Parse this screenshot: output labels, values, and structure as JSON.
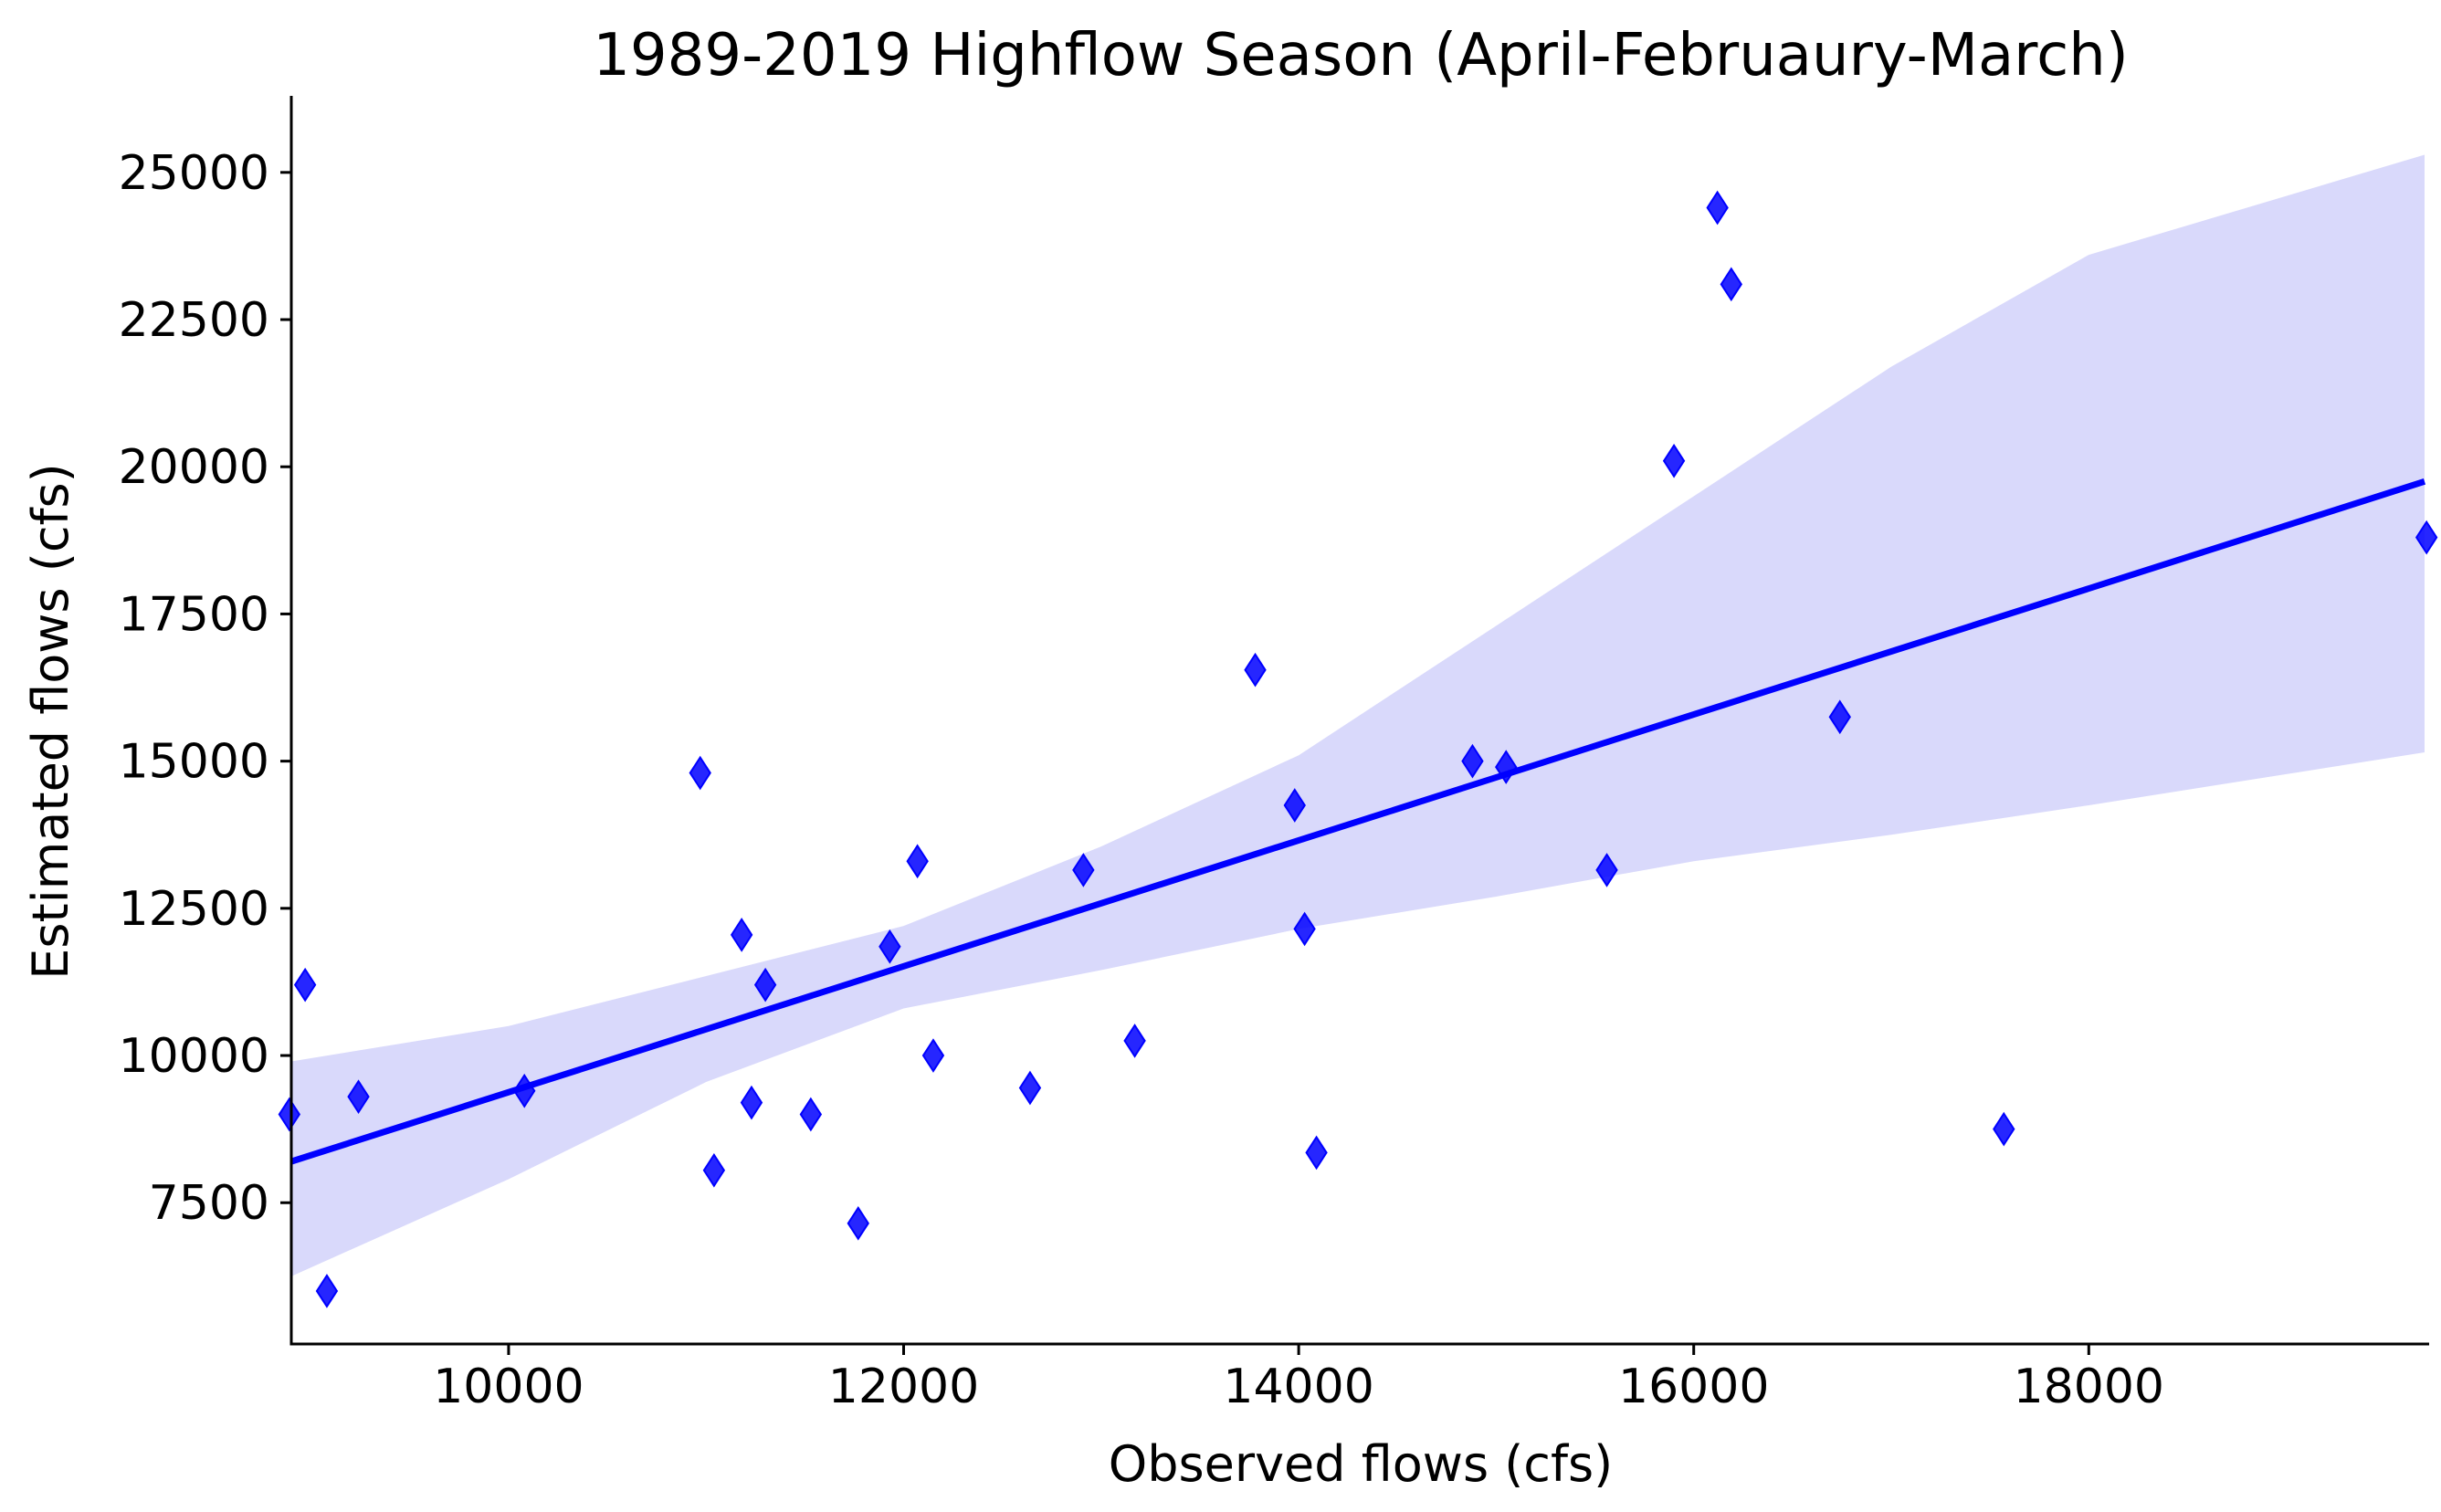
{
  "chart_data": {
    "type": "scatter",
    "title": "1989-2019 Highflow Season (April-Februaury-March)",
    "xlabel": "Observed flows (cfs)",
    "ylabel": "Estimated flows (cfs)",
    "xlim": [
      8900,
      19700
    ],
    "ylim": [
      5100,
      26300
    ],
    "xticks": [
      10000,
      12000,
      14000,
      16000,
      18000
    ],
    "yticks": [
      7500,
      10000,
      12500,
      15000,
      17500,
      20000,
      22500,
      25000
    ],
    "xtick_labels": [
      "10000",
      "12000",
      "14000",
      "16000",
      "18000"
    ],
    "ytick_labels": [
      "7500",
      "10000",
      "12500",
      "15000",
      "17500",
      "20000",
      "22500",
      "25000"
    ],
    "grid": false,
    "colors": {
      "points": "#0000ff",
      "line": "#0000ff",
      "band": "#d9d9fb"
    },
    "marker": "diamond",
    "points": [
      {
        "x": 8890,
        "y": 9000
      },
      {
        "x": 8970,
        "y": 11200
      },
      {
        "x": 9080,
        "y": 6000
      },
      {
        "x": 9240,
        "y": 9300
      },
      {
        "x": 10080,
        "y": 9400
      },
      {
        "x": 10970,
        "y": 14800
      },
      {
        "x": 11040,
        "y": 8050
      },
      {
        "x": 11180,
        "y": 12050
      },
      {
        "x": 11230,
        "y": 9200
      },
      {
        "x": 11300,
        "y": 11200
      },
      {
        "x": 11530,
        "y": 9000
      },
      {
        "x": 11770,
        "y": 7150
      },
      {
        "x": 11930,
        "y": 11850
      },
      {
        "x": 12070,
        "y": 13300
      },
      {
        "x": 12150,
        "y": 10000
      },
      {
        "x": 12640,
        "y": 9450
      },
      {
        "x": 12910,
        "y": 13150
      },
      {
        "x": 13170,
        "y": 10250
      },
      {
        "x": 13780,
        "y": 16550
      },
      {
        "x": 13980,
        "y": 14250
      },
      {
        "x": 14030,
        "y": 12150
      },
      {
        "x": 14090,
        "y": 8350
      },
      {
        "x": 14880,
        "y": 15000
      },
      {
        "x": 15050,
        "y": 14900
      },
      {
        "x": 15560,
        "y": 13150
      },
      {
        "x": 15900,
        "y": 20100
      },
      {
        "x": 16120,
        "y": 24400
      },
      {
        "x": 16190,
        "y": 23100
      },
      {
        "x": 16740,
        "y": 15750
      },
      {
        "x": 17570,
        "y": 8750
      },
      {
        "x": 19710,
        "y": 18800
      }
    ],
    "regression_line": [
      {
        "x": 8900,
        "y": 8200
      },
      {
        "x": 19700,
        "y": 19750
      }
    ],
    "confidence_band": {
      "x": [
        8900,
        10000,
        11000,
        12000,
        13000,
        14000,
        15000,
        16000,
        17000,
        18000,
        19700
      ],
      "lower": [
        6250,
        7900,
        9550,
        10800,
        11450,
        12150,
        12700,
        13300,
        13750,
        14250,
        15150
      ],
      "upper": [
        9900,
        10500,
        11350,
        12200,
        13550,
        15100,
        17300,
        19500,
        21700,
        23600,
        25300
      ]
    }
  }
}
